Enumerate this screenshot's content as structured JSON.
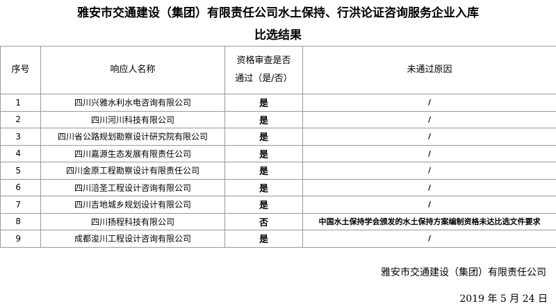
{
  "header": {
    "title_lines": [
      "雅安市交通建设（集团）有限责任公司水土保持、行洪论证咨询服务企业入库",
      "比选结果"
    ]
  },
  "table": {
    "columns": [
      [
        "序号"
      ],
      [
        "响应人名称"
      ],
      [
        "资格审查是否",
        "通过（是/否）"
      ],
      [
        "未通过原因"
      ]
    ],
    "rows": [
      [
        "1",
        "四川兴雅水利水电咨询有限公司",
        "是",
        "/"
      ],
      [
        "2",
        "四川河川科技有限公司",
        "是",
        "/"
      ],
      [
        "3",
        "四川省公路规划勘察设计研究院有限公司",
        "是",
        "/"
      ],
      [
        "4",
        "四川嘉源生态发展有限责任公司",
        "是",
        "/"
      ],
      [
        "5",
        "四川金原工程勘察设计有限责任公司",
        "是",
        "/"
      ],
      [
        "6",
        "四川涪圣工程设计咨询有限公司",
        "是",
        "/"
      ],
      [
        "7",
        "四川吉地城乡规划设计有限公司",
        "是",
        "/"
      ],
      [
        "8",
        "四川扬程科技有限公司",
        "否",
        "中国水土保持学会颁发的水土保持方案编制资格未达比选文件要求"
      ],
      [
        "9",
        "成都浚川工程设计咨询有限公司",
        "是",
        "/"
      ]
    ]
  },
  "footer": {
    "company": "雅安市交通建设（集团）有限责任公司",
    "date": "2019 年 5 月 24 日"
  }
}
